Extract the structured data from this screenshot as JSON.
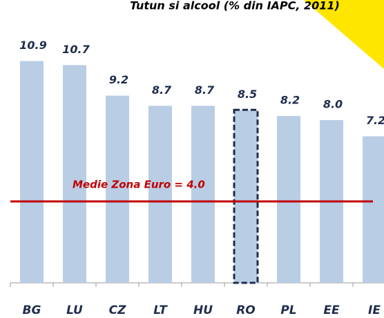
{
  "chart_data": {
    "type": "bar",
    "title": "Tutun si alcool (% din IAPC, 2011)",
    "categories": [
      "BG",
      "LU",
      "CZ",
      "LT",
      "HU",
      "RO",
      "PL",
      "EE",
      "IE"
    ],
    "values": [
      10.9,
      10.7,
      9.2,
      8.7,
      8.7,
      8.5,
      8.2,
      8.0,
      7.2
    ],
    "value_labels": [
      "10.9",
      "10.7",
      "9.2",
      "8.7",
      "8.7",
      "8.5",
      "8.2",
      "8.0",
      "7.2"
    ],
    "color": "#b9cde5",
    "highlight": 5,
    "reference_line": {
      "value": 4.0,
      "label": "Medie Zona Euro = 4.0",
      "color": "#c00000"
    },
    "ylim": [
      0,
      13.9
    ]
  }
}
